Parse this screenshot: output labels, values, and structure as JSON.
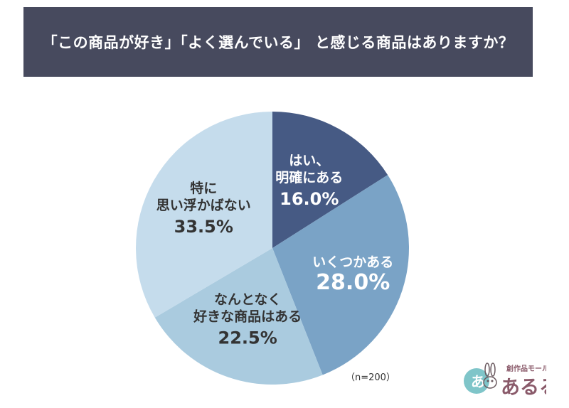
{
  "chart_data": {
    "type": "pie",
    "title": "「この商品が好き」「よく選んでいる」 と感じる商品はありますか？",
    "start_angle_deg": 0,
    "direction": "clockwise",
    "slices": [
      {
        "lines": [
          "はい、",
          "明確にある"
        ],
        "value": 16.0,
        "value_label": "16.0%",
        "color": "#465a84",
        "text_color": "#ffffff"
      },
      {
        "lines": [
          "いくつかある"
        ],
        "value": 28.0,
        "value_label": "28.0%",
        "color": "#7aa3c6",
        "text_color": "#ffffff"
      },
      {
        "lines": [
          "なんとなく",
          "好きな商品はある"
        ],
        "value": 22.5,
        "value_label": "22.5%",
        "color": "#aacbdf",
        "text_color": "#333333"
      },
      {
        "lines": [
          "特に",
          "思い浮かばない"
        ],
        "value": 33.5,
        "value_label": "33.5%",
        "color": "#c5dcec",
        "text_color": "#333333"
      }
    ],
    "note": "（n=200）"
  },
  "logo": {
    "tagline": "創作品モール",
    "name": "あるる",
    "mark": "あ"
  }
}
